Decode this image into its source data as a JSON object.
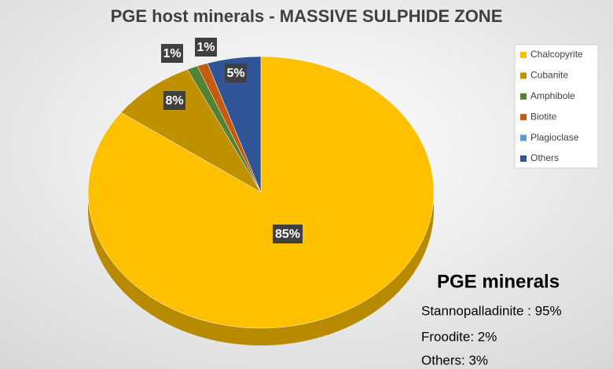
{
  "chart_data": {
    "type": "pie3d",
    "title": "PGE host minerals - MASSIVE SULPHIDE ZONE",
    "categories": [
      "Chalcopyrite",
      "Cubanite",
      "Amphibole",
      "Biotite",
      "Plagioclase",
      "Others"
    ],
    "values": [
      85,
      8,
      1,
      1,
      0,
      5
    ],
    "value_labels": [
      "85%",
      "8%",
      "1%",
      "1%",
      null,
      "5%"
    ],
    "colors": [
      "#FFC000",
      "#BF9000",
      "#548235",
      "#C55A11",
      "#5B9BD5",
      "#2F5597"
    ],
    "legend": "right",
    "annotation": {
      "title": "PGE minerals",
      "lines": [
        "Stannopalladinite : 95%",
        "Froodite: 2%",
        "Others: 3%"
      ]
    }
  }
}
